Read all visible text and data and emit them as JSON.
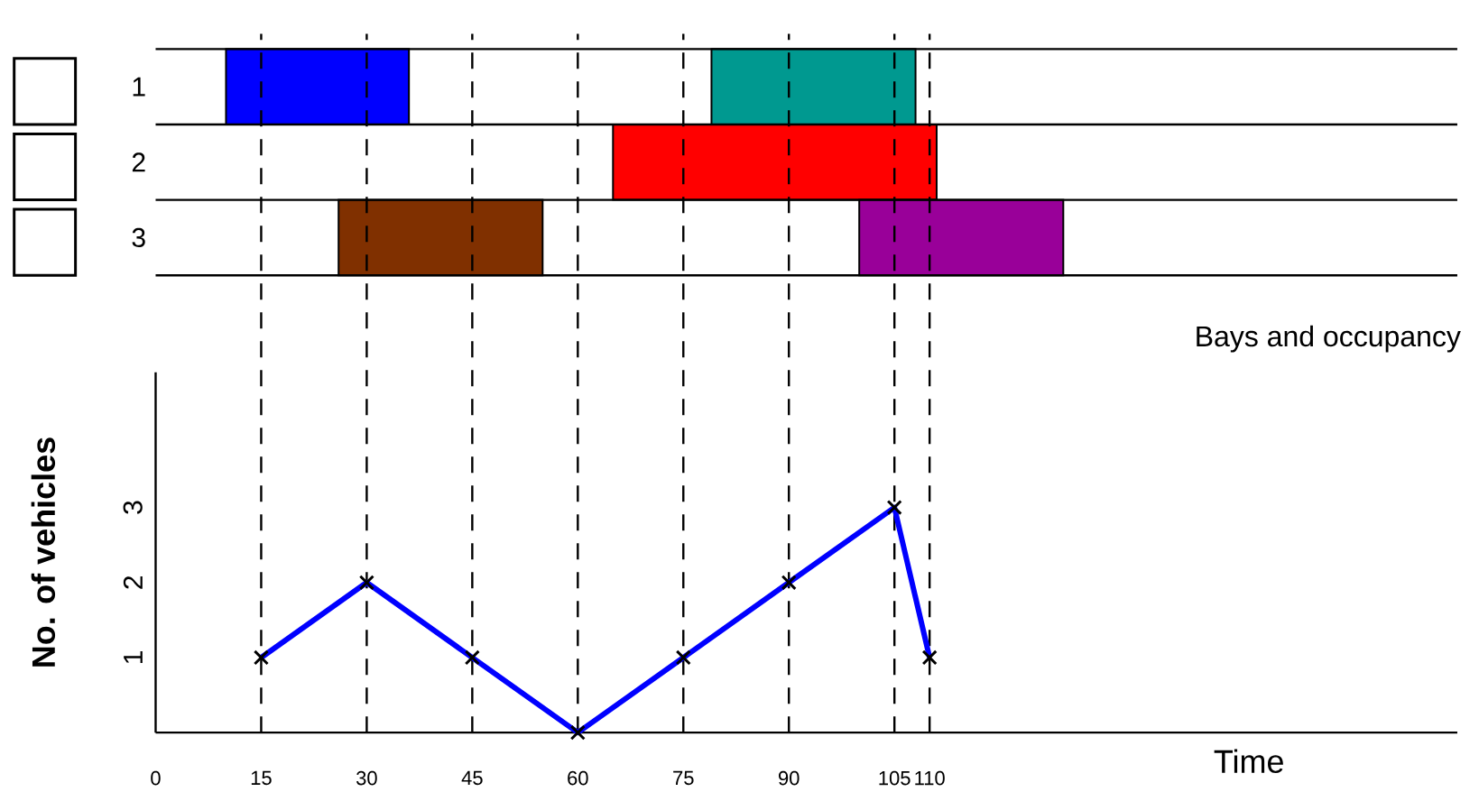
{
  "chart_data": [
    {
      "type": "bar",
      "orientation": "horizontal",
      "xlabel": "Bays and occupancy",
      "categories": [
        "1",
        "2",
        "3"
      ],
      "xlim": [
        0,
        185
      ],
      "tick_labels": "y",
      "series": [
        {
          "base": [
            10,
            65,
            26
          ],
          "values": [
            26,
            46,
            29
          ],
          "colors": [
            "#0000ff",
            "#ff0000",
            "#803000"
          ]
        },
        {
          "base": [
            79,
            null,
            100
          ],
          "values": [
            29,
            null,
            29
          ],
          "colors": [
            "#009990",
            null,
            "#990099"
          ]
        }
      ]
    },
    {
      "type": "line",
      "xlabel": "Time",
      "ylabel": "No. of vehicles",
      "xlim": [
        0,
        185
      ],
      "ylim": [
        0,
        4.8
      ],
      "xticks": [
        0,
        15,
        30,
        45,
        60,
        75,
        90,
        105,
        110
      ],
      "yticks": [
        1,
        2,
        3
      ],
      "marker": "cross",
      "line_style": "solid",
      "ref_lines": [
        {
          "axis": "x",
          "value": 15,
          "line_style": "dashed",
          "color": "#000000"
        },
        {
          "axis": "x",
          "value": 30,
          "line_style": "dashed",
          "color": "#000000"
        },
        {
          "axis": "x",
          "value": 45,
          "line_style": "dashed",
          "color": "#000000"
        },
        {
          "axis": "x",
          "value": 60,
          "line_style": "dashed",
          "color": "#000000"
        },
        {
          "axis": "x",
          "value": 75,
          "line_style": "dashed",
          "color": "#000000"
        },
        {
          "axis": "x",
          "value": 90,
          "line_style": "dashed",
          "color": "#000000"
        },
        {
          "axis": "x",
          "value": 105,
          "line_style": "dashed",
          "color": "#000000"
        },
        {
          "axis": "x",
          "value": 110,
          "line_style": "dashed",
          "color": "#000000"
        }
      ],
      "series": [
        {
          "color": "#0000ff",
          "x": [
            15,
            30,
            45,
            60,
            75,
            90,
            105,
            110
          ],
          "values": [
            1,
            2,
            1,
            0,
            1,
            2,
            3,
            1
          ]
        }
      ]
    }
  ]
}
